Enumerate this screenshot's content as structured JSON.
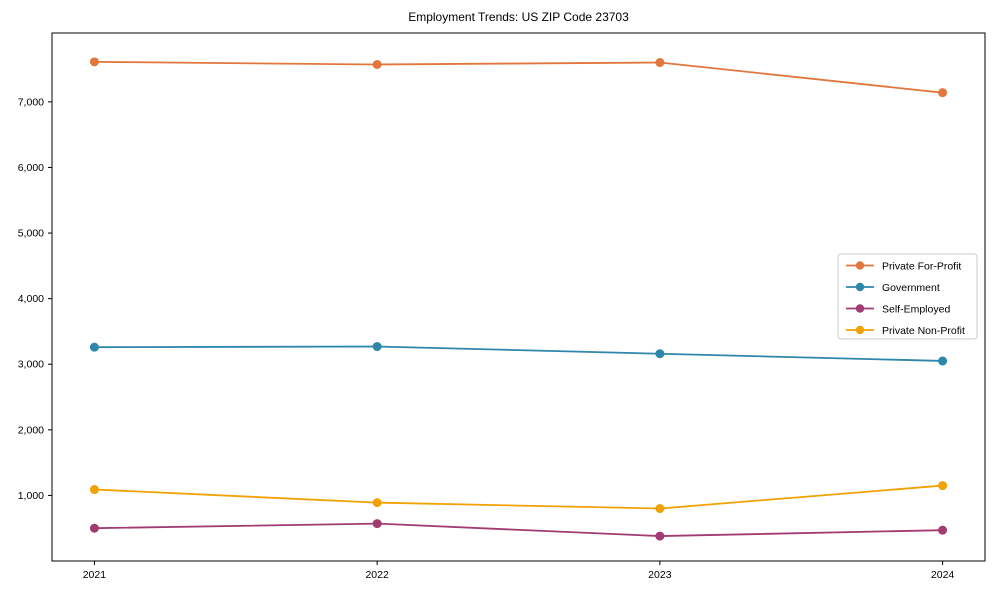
{
  "chart_data": {
    "type": "line",
    "title": "Employment Trends: US ZIP Code 23703",
    "categories": [
      "2021",
      "2022",
      "2023",
      "2024"
    ],
    "series": [
      {
        "name": "Private For-Profit",
        "color": "#E2773D",
        "values": [
          7610,
          7570,
          7600,
          7140
        ]
      },
      {
        "name": "Government",
        "color": "#2E86AB",
        "values": [
          3260,
          3270,
          3160,
          3050
        ]
      },
      {
        "name": "Self-Employed",
        "color": "#A23B72",
        "values": [
          500,
          570,
          380,
          470
        ]
      },
      {
        "name": "Private Non-Profit",
        "color": "#F2A104",
        "values": [
          1090,
          890,
          800,
          1150
        ]
      }
    ],
    "yticks": [
      1000,
      2000,
      3000,
      4000,
      5000,
      6000,
      7000
    ],
    "ytick_labels": [
      "1,000",
      "2,000",
      "3,000",
      "4,000",
      "5,000",
      "6,000",
      "7,000"
    ],
    "ylim": [
      0,
      8050
    ],
    "xlabel": "",
    "ylabel": "",
    "grid": false,
    "legend_position": "center-right",
    "axis_color": "#000000",
    "legend_border_color": "#cccccc",
    "background": "#ffffff"
  }
}
